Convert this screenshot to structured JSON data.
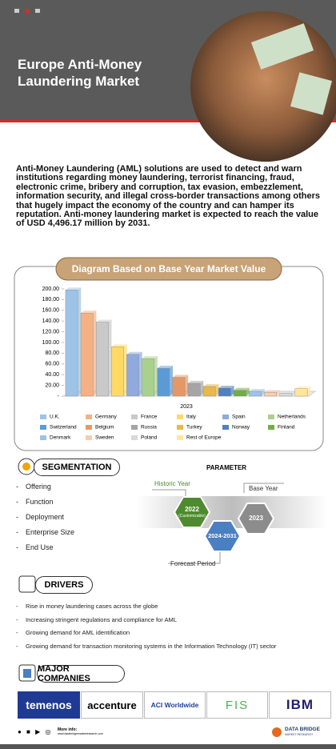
{
  "header": {
    "title": "Europe Anti-Money Laundering Market"
  },
  "intro": "Anti-Money Laundering (AML) solutions are used to detect and warn institutions regarding money laundering, terrorist financing, fraud, electronic crime, bribery and corruption, tax evasion, embezzlement, information security, and illegal cross-border transactions among others that hugely impact the economy of the country and can hamper its reputation. Anti-money laundering market is expected to reach the value of USD 4,496.17 million by 2031.",
  "chart_data": {
    "type": "bar",
    "title": "Diagram Based on Base Year Market Value",
    "xlabel": "2023",
    "categories": [
      "U.K.",
      "Germany",
      "France",
      "Italy",
      "Spain",
      "Netherlands",
      "Switzerland",
      "Belgium",
      "Russia",
      "Turkey",
      "Norway",
      "Finland",
      "Denmark",
      "Sweden",
      "Poland",
      "Rest of Europe"
    ],
    "values": [
      198,
      155,
      138,
      92,
      78,
      70,
      52,
      35,
      24,
      18,
      15,
      11,
      9,
      7,
      5,
      14
    ],
    "colors": [
      "#9dc3e6",
      "#f4b183",
      "#c9c9c9",
      "#ffd966",
      "#8faadc",
      "#a9d18e",
      "#5b9bd5",
      "#e59866",
      "#a5a5a5",
      "#e6b84d",
      "#4f81bd",
      "#70ad47",
      "#9dc3e6",
      "#f8cbad",
      "#d9d9d9",
      "#ffe699"
    ],
    "ylim": [
      0,
      200
    ],
    "yticks": [
      {
        "value": 0,
        "label": "-"
      },
      {
        "value": 20,
        "label": "20.00"
      },
      {
        "value": 40,
        "label": "40.00"
      },
      {
        "value": 60,
        "label": "60.00"
      },
      {
        "value": 80,
        "label": "80.00"
      },
      {
        "value": 100,
        "label": "100.00"
      },
      {
        "value": 120,
        "label": "120.00"
      },
      {
        "value": 140,
        "label": "140.00"
      },
      {
        "value": 160,
        "label": "160.00"
      },
      {
        "value": 180,
        "label": "180.00"
      },
      {
        "value": 200,
        "label": "200.00"
      }
    ],
    "legend": "bottom"
  },
  "segmentation": {
    "title": "SEGMENTATION",
    "items": [
      "Offering",
      "Function",
      "Deployment",
      "Enterprise Size",
      "End Use"
    ]
  },
  "parameter": {
    "title": "PARAMETER",
    "historic_label": "Historic Year",
    "historic": "2022",
    "historic_note": "(Customizable)",
    "base_label": "Base Year",
    "base": "2023",
    "forecast_label": "Forecast Period",
    "forecast": "2024-2031"
  },
  "drivers": {
    "title": "DRIVERS",
    "items": [
      "Rise in money laundering cases across the globe",
      "Increasing stringent regulations and compliance for AML",
      "Growing demand for AML identification",
      "Growing demand for transaction monitoring systems in the Information Technology (IT) sector"
    ]
  },
  "companies": {
    "title": "MAJOR COMPANIES",
    "items": [
      "temenos",
      "accenture",
      "ACI Worldwide",
      "FIS",
      "IBM"
    ]
  },
  "footer": {
    "more_info": "More info:",
    "url": "www.databridgemarketresearch.com",
    "brand": "DATA BRIDGE",
    "brand_sub": "MARKET RESEARCH"
  }
}
